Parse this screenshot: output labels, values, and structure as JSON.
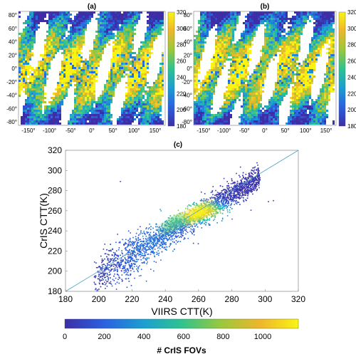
{
  "chart_data": [
    {
      "type": "map",
      "panel_label": "(a)",
      "xticks": [
        "-150°",
        "-100°",
        "-50°",
        "0°",
        "50°",
        "100°",
        "150°"
      ],
      "yticks": [
        "80°",
        "60°",
        "40°",
        "20°",
        "0°",
        "-20°",
        "-40°",
        "-60°",
        "-80°"
      ],
      "colorbar_ticks": [
        "320",
        "300",
        "280",
        "260",
        "240",
        "220",
        "200",
        "180"
      ],
      "colorbar_range": [
        180,
        320
      ]
    },
    {
      "type": "map",
      "panel_label": "(b)",
      "xticks": [
        "-150°",
        "-100°",
        "-50°",
        "0°",
        "50°",
        "100°",
        "150°"
      ],
      "yticks": [
        "80°",
        "60°",
        "40°",
        "20°",
        "0°",
        "-20°",
        "-40°",
        "-60°",
        "-80°"
      ],
      "colorbar_ticks": [
        "320",
        "300",
        "280",
        "260",
        "240",
        "220",
        "200",
        "180"
      ],
      "colorbar_range": [
        180,
        320
      ]
    },
    {
      "type": "scatter",
      "panel_label": "(c)",
      "xlabel": "VIIRS CTT(K)",
      "ylabel": "CrIS CTT(K)",
      "xlim": [
        180,
        320
      ],
      "ylim": [
        180,
        320
      ],
      "xticks": [
        "180",
        "200",
        "220",
        "240",
        "260",
        "280",
        "300",
        "320"
      ],
      "yticks": [
        "180",
        "200",
        "220",
        "240",
        "260",
        "280",
        "300",
        "320"
      ],
      "reference_line": "1:1",
      "density_core": {
        "x": 260,
        "y": 258
      },
      "colorbar_label": "# CrIS FOVs",
      "colorbar_ticks": [
        "0",
        "200",
        "400",
        "600",
        "800",
        "1000"
      ],
      "colorbar_range": [
        0,
        1180
      ]
    }
  ],
  "colors": {
    "colormap": [
      "#3d2ea7",
      "#2a62e0",
      "#1c9fd1",
      "#2ec38f",
      "#9bc83c",
      "#efb62a",
      "#f8f514"
    ],
    "line": "#4da0c8"
  }
}
